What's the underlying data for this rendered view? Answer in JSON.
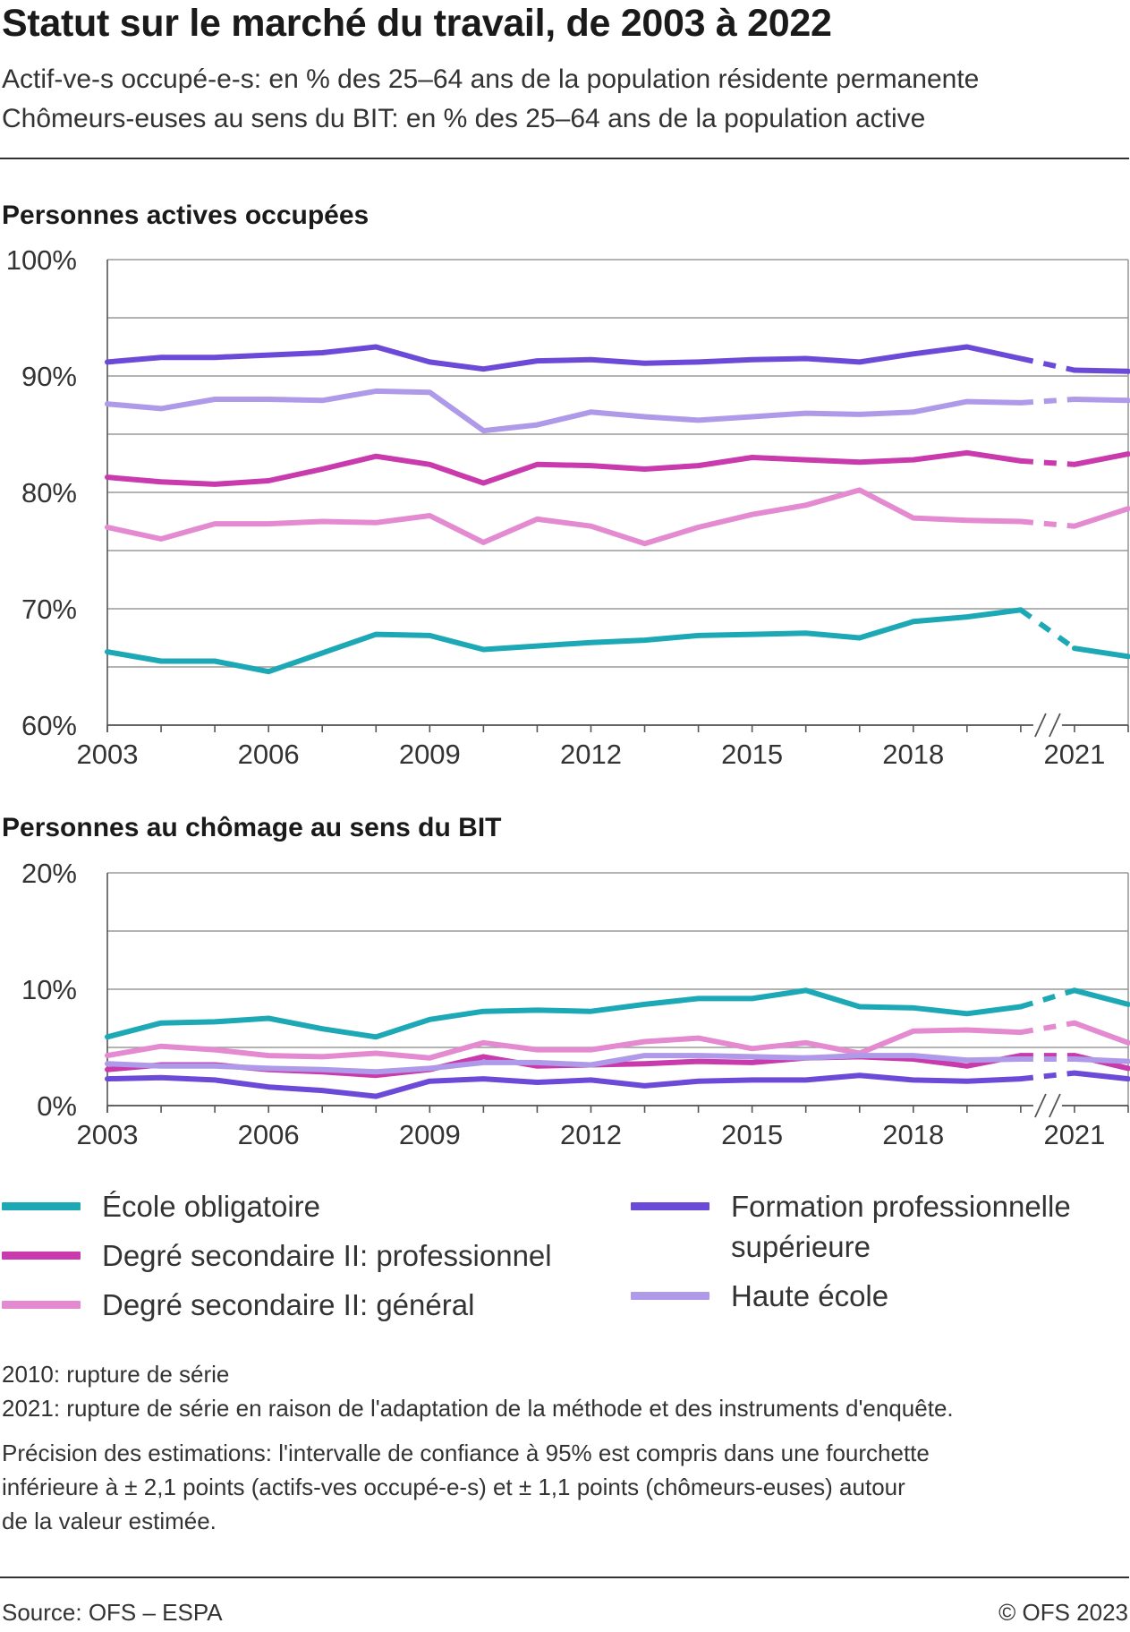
{
  "header": {
    "title": "Statut sur le marché du travail, de 2003 à 2022",
    "subtitle_line1": "Actif-ve-s occupé-e-s: en % des 25–64 ans de la population résidente permanente",
    "subtitle_line2": "Chômeurs-euses au sens du BIT: en % des 25–64 ans de la population active"
  },
  "colors": {
    "ecole_obligatoire": "#1da8b6",
    "secondaire_professionnel": "#c93aad",
    "secondaire_general": "#e48ad0",
    "formation_prof_sup": "#6c4ad8",
    "haute_ecole": "#ae9ae8"
  },
  "legend": [
    {
      "name": "École obligatoire",
      "color": "#1da8b6"
    },
    {
      "name": "Degré secondaire II: professionnel",
      "color": "#c93aad"
    },
    {
      "name": "Degré secondaire II: général",
      "color": "#e48ad0"
    },
    {
      "name": "Formation professionnelle supérieure",
      "color": "#6c4ad8"
    },
    {
      "name": "Haute école",
      "color": "#ae9ae8"
    }
  ],
  "chart_data": [
    {
      "type": "line",
      "title": "Personnes actives occupées",
      "x": [
        2003,
        2004,
        2005,
        2006,
        2007,
        2008,
        2009,
        2010,
        2011,
        2012,
        2013,
        2014,
        2015,
        2016,
        2017,
        2018,
        2019,
        2020,
        2021,
        2022
      ],
      "xticks": [
        "2003",
        "2006",
        "2009",
        "2012",
        "2015",
        "2018",
        "2021"
      ],
      "yticks": [
        "60%",
        "70%",
        "80%",
        "90%",
        "100%"
      ],
      "ylim": [
        60,
        100
      ],
      "ygrid_step": 5,
      "grid": true,
      "series_breaks": [
        2010,
        2021
      ],
      "series": [
        {
          "name": "École obligatoire",
          "color": "#1da8b6",
          "values": [
            66.3,
            65.5,
            65.5,
            64.6,
            66.2,
            67.8,
            67.7,
            66.5,
            66.8,
            67.1,
            67.3,
            67.7,
            67.8,
            67.9,
            67.5,
            68.9,
            69.3,
            69.9,
            66.6,
            65.9
          ]
        },
        {
          "name": "Degré secondaire II: professionnel",
          "color": "#c93aad",
          "values": [
            81.3,
            80.9,
            80.7,
            81.0,
            82.0,
            83.1,
            82.4,
            80.8,
            82.4,
            82.3,
            82.0,
            82.3,
            83.0,
            82.8,
            82.6,
            82.8,
            83.4,
            82.7,
            82.4,
            83.3
          ]
        },
        {
          "name": "Degré secondaire II: général",
          "color": "#e48ad0",
          "values": [
            77.0,
            76.0,
            77.3,
            77.3,
            77.5,
            77.4,
            78.0,
            75.7,
            77.7,
            77.1,
            75.6,
            77.0,
            78.1,
            78.9,
            80.2,
            77.8,
            77.6,
            77.5,
            77.1,
            78.6
          ]
        },
        {
          "name": "Formation professionnelle supérieure",
          "color": "#6c4ad8",
          "values": [
            91.2,
            91.6,
            91.6,
            91.8,
            92.0,
            92.5,
            91.2,
            90.6,
            91.3,
            91.4,
            91.1,
            91.2,
            91.4,
            91.5,
            91.2,
            91.9,
            92.5,
            91.5,
            90.5,
            90.4
          ]
        },
        {
          "name": "Haute école",
          "color": "#ae9ae8",
          "values": [
            87.6,
            87.2,
            88.0,
            88.0,
            87.9,
            88.7,
            88.6,
            85.3,
            85.8,
            86.9,
            86.5,
            86.2,
            86.5,
            86.8,
            86.7,
            86.9,
            87.8,
            87.7,
            88.0,
            87.9
          ]
        }
      ]
    },
    {
      "type": "line",
      "title": "Personnes au chômage au sens du BIT",
      "x": [
        2003,
        2004,
        2005,
        2006,
        2007,
        2008,
        2009,
        2010,
        2011,
        2012,
        2013,
        2014,
        2015,
        2016,
        2017,
        2018,
        2019,
        2020,
        2021,
        2022
      ],
      "xticks": [
        "2003",
        "2006",
        "2009",
        "2012",
        "2015",
        "2018",
        "2021"
      ],
      "yticks": [
        "0%",
        "10%",
        "20%"
      ],
      "ylim": [
        0,
        20
      ],
      "ygrid_step": 5,
      "grid": true,
      "series_breaks": [
        2010,
        2021
      ],
      "series": [
        {
          "name": "École obligatoire",
          "color": "#1da8b6",
          "values": [
            5.9,
            7.1,
            7.2,
            7.5,
            6.6,
            5.9,
            7.4,
            8.1,
            8.2,
            8.1,
            8.7,
            9.2,
            9.2,
            9.9,
            8.5,
            8.4,
            7.9,
            8.5,
            9.9,
            8.7
          ]
        },
        {
          "name": "Degré secondaire II: professionnel",
          "color": "#c93aad",
          "values": [
            3.1,
            3.5,
            3.5,
            3.1,
            2.9,
            2.6,
            3.1,
            4.2,
            3.4,
            3.5,
            3.6,
            3.8,
            3.7,
            4.1,
            4.2,
            4.0,
            3.4,
            4.3,
            4.3,
            3.2
          ]
        },
        {
          "name": "Degré secondaire II: général",
          "color": "#e48ad0",
          "values": [
            4.3,
            5.1,
            4.8,
            4.3,
            4.2,
            4.5,
            4.1,
            5.4,
            4.8,
            4.8,
            5.5,
            5.8,
            4.9,
            5.4,
            4.5,
            6.4,
            6.5,
            6.3,
            7.1,
            5.4
          ]
        },
        {
          "name": "Formation professionnelle supérieure",
          "color": "#6c4ad8",
          "values": [
            2.3,
            2.4,
            2.2,
            1.6,
            1.3,
            0.8,
            2.1,
            2.3,
            2.0,
            2.2,
            1.7,
            2.1,
            2.2,
            2.2,
            2.6,
            2.2,
            2.1,
            2.3,
            2.8,
            2.3
          ]
        },
        {
          "name": "Haute école",
          "color": "#ae9ae8",
          "values": [
            3.6,
            3.4,
            3.4,
            3.2,
            3.1,
            2.9,
            3.2,
            3.7,
            3.7,
            3.5,
            4.3,
            4.3,
            4.2,
            4.1,
            4.3,
            4.3,
            3.9,
            4.0,
            4.0,
            3.8
          ]
        }
      ]
    }
  ],
  "notes": {
    "line1": "2010: rupture de série",
    "line2": "2021: rupture de série en raison de l'adaptation de la méthode et des instruments d'enquête.",
    "precision1": "Précision des estimations: l'intervalle de confiance à 95% est compris dans une fourchette",
    "precision2": "inférieure à ± 2,1 points (actifs-ves occupé-e-s) et ± 1,1 points (chômeurs-euses) autour",
    "precision3": "de la valeur estimée."
  },
  "footer": {
    "source": "Source: OFS – ESPA",
    "copyright": "© OFS 2023"
  }
}
